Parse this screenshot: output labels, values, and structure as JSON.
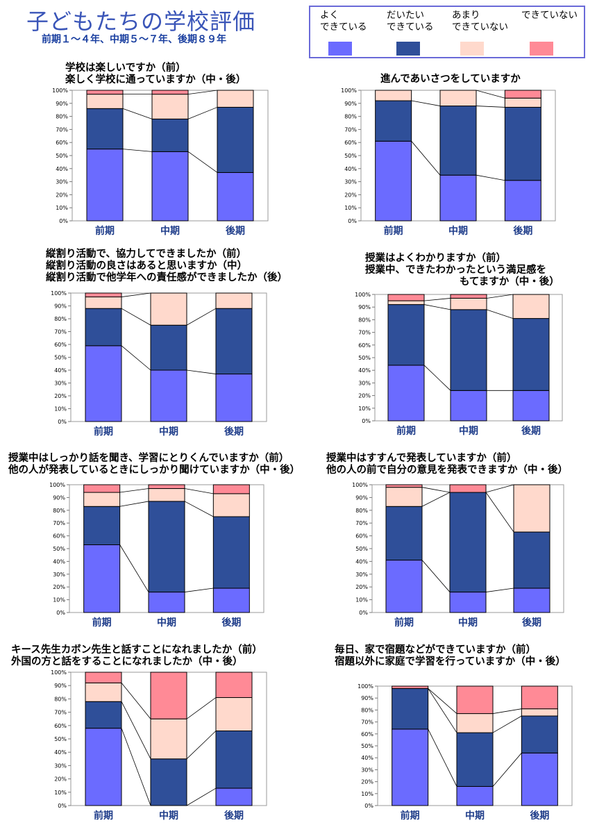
{
  "title": "子どもたちの学校評価",
  "subtitle": "前期１～４年、中期５～７年、後期８９年",
  "legend": [
    {
      "label": "よく\nできている",
      "color": "#6b6bff"
    },
    {
      "label": "だいたい\nできている",
      "color": "#2f4f99"
    },
    {
      "label": "あまり\nできていない",
      "color": "#ffd9cc"
    },
    {
      "label": "できていない",
      "color": "#ff8a96"
    }
  ],
  "chart_data": [
    {
      "type": "bar",
      "title_lines": [
        "学校は楽しいですか（前）",
        "楽しく学校に通っていますか（中・後）"
      ],
      "categories": [
        "前期",
        "中期",
        "後期"
      ],
      "yticks": [
        "0%",
        "10%",
        "20%",
        "30%",
        "40%",
        "50%",
        "60%",
        "70%",
        "80%",
        "90%",
        "100%"
      ],
      "ylim": [
        0,
        100
      ],
      "series": [
        {
          "values": [
            55,
            53,
            37
          ]
        },
        {
          "values": [
            31,
            25,
            50
          ]
        },
        {
          "values": [
            11,
            19,
            13
          ]
        },
        {
          "values": [
            3,
            3,
            0
          ]
        }
      ]
    },
    {
      "type": "bar",
      "title_lines": [
        "進んであいさつをしていますか"
      ],
      "categories": [
        "前期",
        "中期",
        "後期"
      ],
      "yticks": [
        "0%",
        "10%",
        "20%",
        "30%",
        "40%",
        "50%",
        "60%",
        "70%",
        "80%",
        "90%",
        "100%"
      ],
      "ylim": [
        0,
        100
      ],
      "series": [
        {
          "values": [
            61,
            35,
            31
          ]
        },
        {
          "values": [
            31,
            53,
            56
          ]
        },
        {
          "values": [
            8,
            12,
            7
          ]
        },
        {
          "values": [
            0,
            0,
            6
          ]
        }
      ]
    },
    {
      "type": "bar",
      "title_lines": [
        "縦割り活動で、協力してできましたか（前）",
        "縦割り活動の良さはあると思いますか（中）",
        "縦割り活動で他学年への責任感ができましたか（後）"
      ],
      "categories": [
        "前期",
        "中期",
        "後期"
      ],
      "yticks": [
        "0%",
        "10%",
        "20%",
        "30%",
        "40%",
        "50%",
        "60%",
        "70%",
        "80%",
        "90%",
        "100%"
      ],
      "ylim": [
        0,
        100
      ],
      "series": [
        {
          "values": [
            59,
            40,
            37
          ]
        },
        {
          "values": [
            29,
            35,
            51
          ]
        },
        {
          "values": [
            9,
            25,
            12
          ]
        },
        {
          "values": [
            3,
            0,
            0
          ]
        }
      ]
    },
    {
      "type": "bar",
      "title_lines": [
        "授業はよくわかりますか（前）",
        "授業中、できたわかったという満足感を",
        "もてますか（中・後）"
      ],
      "categories": [
        "前期",
        "中期",
        "後期"
      ],
      "yticks": [
        "0%",
        "10%",
        "20%",
        "30%",
        "40%",
        "50%",
        "60%",
        "70%",
        "80%",
        "90%",
        "100%"
      ],
      "ylim": [
        0,
        100
      ],
      "series": [
        {
          "values": [
            44,
            24,
            24
          ]
        },
        {
          "values": [
            48,
            64,
            57
          ]
        },
        {
          "values": [
            3,
            9,
            19
          ]
        },
        {
          "values": [
            5,
            3,
            0
          ]
        }
      ]
    },
    {
      "type": "bar",
      "title_lines": [
        "授業中はしっかり話を聞き、学習にとりくんでいますか（前）",
        "他の人が発表しているときにしっかり聞けていますか（中・後）"
      ],
      "categories": [
        "前期",
        "中期",
        "後期"
      ],
      "yticks": [
        "0%",
        "10%",
        "20%",
        "30%",
        "40%",
        "50%",
        "60%",
        "70%",
        "80%",
        "90%",
        "100%"
      ],
      "ylim": [
        0,
        100
      ],
      "series": [
        {
          "values": [
            53,
            16,
            19
          ]
        },
        {
          "values": [
            30,
            71,
            56
          ]
        },
        {
          "values": [
            11,
            10,
            18
          ]
        },
        {
          "values": [
            6,
            3,
            7
          ]
        }
      ]
    },
    {
      "type": "bar",
      "title_lines": [
        "授業中はすすんで発表していますか（前）",
        "他の人の前で自分の意見を発表できますか（中・後）"
      ],
      "categories": [
        "前期",
        "中期",
        "後期"
      ],
      "yticks": [
        "0%",
        "10%",
        "20%",
        "30%",
        "40%",
        "50%",
        "60%",
        "70%",
        "80%",
        "90%",
        "100%"
      ],
      "ylim": [
        0,
        100
      ],
      "series": [
        {
          "values": [
            41,
            16,
            19
          ]
        },
        {
          "values": [
            42,
            78,
            44
          ]
        },
        {
          "values": [
            15,
            0,
            37
          ]
        },
        {
          "values": [
            2,
            6,
            0
          ]
        }
      ]
    },
    {
      "type": "bar",
      "title_lines": [
        "キース先生カボン先生と話すことになれましたか（前）",
        "外国の方と話をすることになれましたか（中・後）"
      ],
      "categories": [
        "前期",
        "中期",
        "後期"
      ],
      "yticks": [
        "0%",
        "10%",
        "20%",
        "30%",
        "40%",
        "50%",
        "60%",
        "70%",
        "80%",
        "90%",
        "100%"
      ],
      "ylim": [
        0,
        100
      ],
      "series": [
        {
          "values": [
            58,
            0,
            13
          ]
        },
        {
          "values": [
            20,
            35,
            43
          ]
        },
        {
          "values": [
            14,
            30,
            25
          ]
        },
        {
          "values": [
            8,
            35,
            19
          ]
        }
      ]
    },
    {
      "type": "bar",
      "title_lines": [
        "毎日、家で宿題などができていますか（前）",
        "宿題以外に家庭で学習を行っていますか（中・後）"
      ],
      "categories": [
        "前期",
        "中期",
        "後期"
      ],
      "yticks": [
        "0%",
        "10%",
        "20%",
        "30%",
        "40%",
        "50%",
        "60%",
        "70%",
        "80%",
        "90%",
        "100%"
      ],
      "ylim": [
        0,
        100
      ],
      "series": [
        {
          "values": [
            64,
            16,
            44
          ]
        },
        {
          "values": [
            34,
            45,
            31
          ]
        },
        {
          "values": [
            0,
            16,
            6
          ]
        },
        {
          "values": [
            2,
            23,
            19
          ]
        }
      ]
    }
  ]
}
